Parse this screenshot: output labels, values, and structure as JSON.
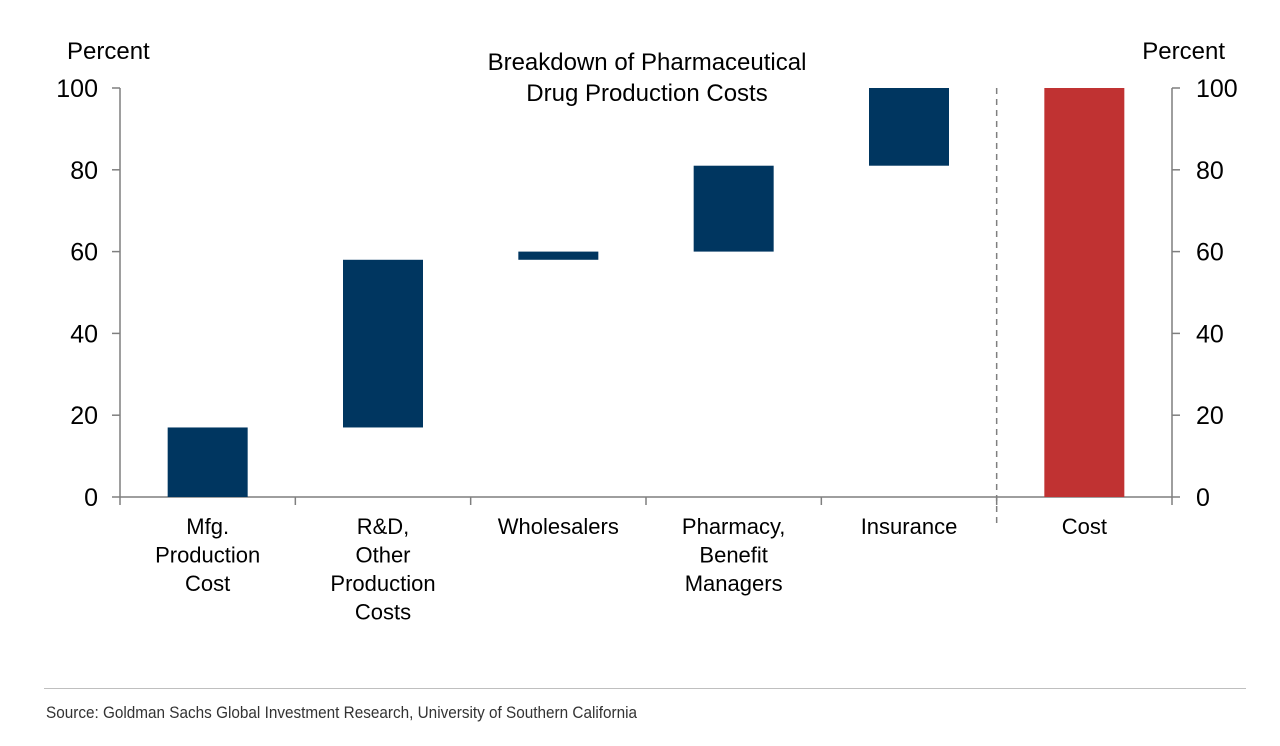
{
  "chart_data": {
    "type": "waterfall",
    "title": "Breakdown of Pharmaceutical Drug Production Costs",
    "title_lines": [
      "Breakdown of Pharmaceutical",
      "Drug Production Costs"
    ],
    "ylabel_left": "Percent",
    "ylabel_right": "Percent",
    "ylim": [
      0,
      100
    ],
    "yticks": [
      0,
      20,
      40,
      60,
      80,
      100
    ],
    "grid": false,
    "categories": [
      {
        "label": [
          "Mfg.",
          "Production",
          "Cost"
        ],
        "start": 0,
        "end": 17,
        "color": "#003660"
      },
      {
        "label": [
          "R&D,",
          "Other",
          "Production",
          "Costs"
        ],
        "start": 17,
        "end": 58,
        "color": "#003660"
      },
      {
        "label": [
          "Wholesalers"
        ],
        "start": 58,
        "end": 60,
        "color": "#003660"
      },
      {
        "label": [
          "Pharmacy,",
          "Benefit",
          "Managers"
        ],
        "start": 60,
        "end": 81,
        "color": "#003660"
      },
      {
        "label": [
          "Insurance"
        ],
        "start": 81,
        "end": 100,
        "color": "#003660"
      },
      {
        "label": [
          "Cost"
        ],
        "start": 0,
        "end": 100,
        "color": "#c03232"
      }
    ]
  },
  "source": "Source: Goldman Sachs Global Investment Research, University of Southern California"
}
